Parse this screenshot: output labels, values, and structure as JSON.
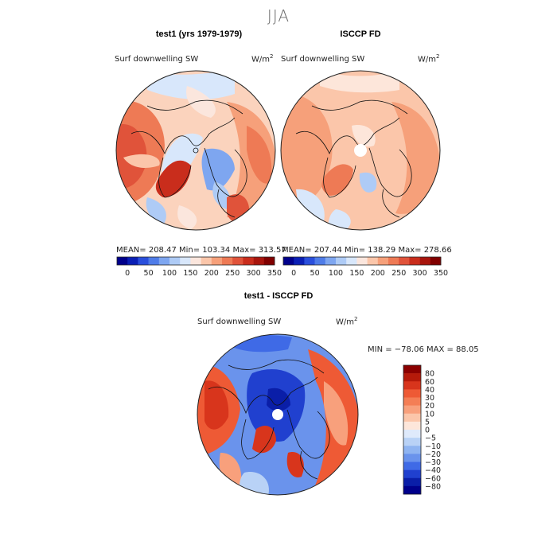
{
  "figure": {
    "season": "JJA",
    "panels": [
      {
        "title": "test1 (yrs 1979-1979)",
        "variable": "Surf downwelling SW",
        "units_base": "W/m",
        "units_exp": "2",
        "stats": "MEAN= 208.47   Min= 103.34   Max= 313.57"
      },
      {
        "title": "ISCCP FD",
        "variable": "Surf downwelling SW",
        "units_base": "W/m",
        "units_exp": "2",
        "stats": "MEAN= 207.44   Min= 138.29   Max= 278.66"
      },
      {
        "title": "test1 - ISCCP FD",
        "variable": "Surf downwelling SW",
        "units_base": "W/m",
        "units_exp": "2",
        "stats": "MIN = −78.06  MAX =  88.05"
      }
    ],
    "abs_colorbar": {
      "ticks": [
        "0",
        "50",
        "100",
        "150",
        "200",
        "250",
        "300",
        "350"
      ],
      "colors": [
        "#00008b",
        "#0a1fb5",
        "#2a4fdc",
        "#4f7ce8",
        "#7ea6f0",
        "#aecbf6",
        "#d8e7fb",
        "#fbe6dd",
        "#fbc6aa",
        "#f6a07a",
        "#ee7a55",
        "#e0533a",
        "#c92d1c",
        "#a8150d",
        "#800000"
      ]
    },
    "diff_colorbar": {
      "labels": [
        "80",
        "60",
        "40",
        "30",
        "20",
        "10",
        "5",
        "0",
        "−5",
        "−10",
        "−20",
        "−30",
        "−40",
        "−60",
        "−80"
      ],
      "colors": [
        "#8b0000",
        "#b51a0a",
        "#d8351c",
        "#ee5a35",
        "#f47e55",
        "#f8a07c",
        "#fbc6aa",
        "#fde6da",
        "#dfeafb",
        "#b9d2f6",
        "#8fb4f1",
        "#6a93ec",
        "#3f6ae6",
        "#2040cf",
        "#0a1ea8",
        "#00008b"
      ]
    }
  }
}
